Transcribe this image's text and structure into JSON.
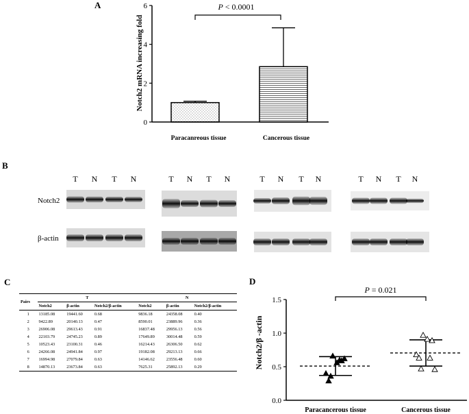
{
  "panels": {
    "A": "A",
    "B": "B",
    "C": "C",
    "D": "D"
  },
  "chart_a": {
    "type": "bar",
    "ylabel": "Notch2 mRNA increasing fold",
    "categories": [
      "Paracanreous tissue",
      "Cancerous tissue"
    ],
    "values": [
      1.0,
      2.85
    ],
    "error_upper": [
      1.07,
      4.85
    ],
    "ylim": [
      0,
      6
    ],
    "yticks": [
      "0",
      "2",
      "4",
      "6"
    ],
    "sig_prefix": "P",
    "sig_rest": " < 0.0001"
  },
  "blots": {
    "lane_labels": [
      "T",
      "N",
      "T",
      "N"
    ],
    "row_labels": [
      "Notch2",
      "β-actin"
    ]
  },
  "table": {
    "pairs_header": "Pairs",
    "group_T": "T",
    "group_N": "N",
    "cols": [
      "Notch2",
      "β-actin",
      "Notch2/β-actin",
      "Notch2",
      "β-actin",
      "Notch2/β-actin"
    ],
    "rows": [
      [
        "1",
        "13185.08",
        "19441.60",
        "0.68",
        "9836.18",
        "24358.08",
        "0.40"
      ],
      [
        "2",
        "9422.89",
        "20140.13",
        "0.47",
        "8590.01",
        "23889.96",
        "0.36"
      ],
      [
        "3",
        "26906.08",
        "29613.43",
        "0.91",
        "16837.48",
        "29956.13",
        "0.56"
      ],
      [
        "4",
        "22103.79",
        "24745.23",
        "0.89",
        "17649.89",
        "30014.48",
        "0.59"
      ],
      [
        "5",
        "10523.43",
        "23100.31",
        "0.46",
        "16214.43",
        "26306.50",
        "0.62"
      ],
      [
        "6",
        "24266.08",
        "24941.84",
        "0.97",
        "19182.08",
        "29213.13",
        "0.66"
      ],
      [
        "7",
        "16994.98",
        "27079.84",
        "0.63",
        "14146.62",
        "23556.48",
        "0.60"
      ],
      [
        "8",
        "14870.13",
        "23673.84",
        "0.63",
        "7625.31",
        "25892.13",
        "0.29"
      ]
    ]
  },
  "chart_d": {
    "type": "scatter",
    "ylabel": "Notch2/β -actin",
    "categories": [
      "Paracancerous tissue",
      "Cancerous tissue"
    ],
    "ylim": [
      0,
      1.5
    ],
    "yticks": [
      "0.0",
      "0.5",
      "1.0",
      "1.5"
    ],
    "sig_prefix": "P",
    "sig_rest": " = 0.021",
    "series": [
      {
        "values": [
          0.4,
          0.36,
          0.56,
          0.59,
          0.62,
          0.66,
          0.6,
          0.29
        ],
        "mean": 0.51,
        "sd_low": 0.37,
        "sd_high": 0.65
      },
      {
        "values": [
          0.68,
          0.47,
          0.91,
          0.89,
          0.46,
          0.97,
          0.63,
          0.63
        ],
        "mean": 0.705,
        "sd_low": 0.51,
        "sd_high": 0.9
      }
    ]
  }
}
